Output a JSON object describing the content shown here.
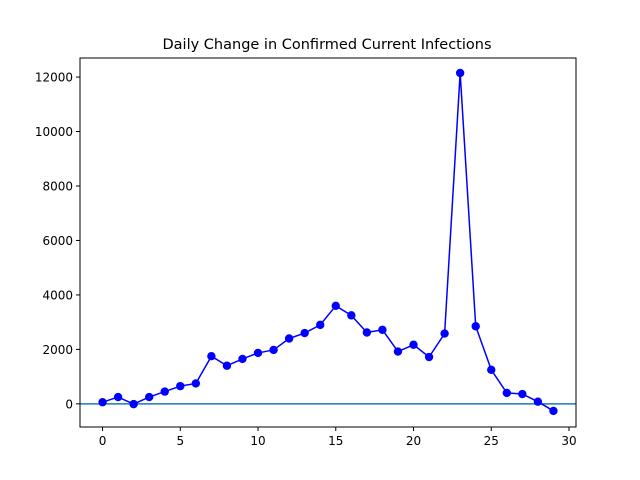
{
  "chart_data": {
    "type": "line",
    "title": "Daily Change in Confirmed Current Infections",
    "xlabel": "",
    "ylabel": "",
    "xlim": [
      -1.45,
      30.45
    ],
    "ylim": [
      -850,
      12700
    ],
    "x_ticks": [
      0,
      5,
      10,
      15,
      20,
      25,
      30
    ],
    "y_ticks": [
      0,
      2000,
      4000,
      6000,
      8000,
      10000,
      12000
    ],
    "grid": false,
    "legend": "none",
    "reference_line": {
      "y": 0,
      "color": "#1f77b4"
    },
    "series": [
      {
        "color": "#0000ff",
        "marker": "circle",
        "x": [
          0,
          1,
          2,
          3,
          4,
          5,
          6,
          7,
          8,
          9,
          10,
          11,
          12,
          13,
          14,
          15,
          16,
          17,
          18,
          19,
          20,
          21,
          22,
          23,
          24,
          25,
          26,
          27,
          28,
          29
        ],
        "values": [
          60,
          250,
          -10,
          250,
          450,
          650,
          750,
          1750,
          1400,
          1650,
          1870,
          1980,
          2400,
          2600,
          2900,
          3600,
          3250,
          2620,
          2720,
          1920,
          2170,
          1720,
          2580,
          12150,
          2850,
          1250,
          400,
          360,
          80,
          -260
        ]
      }
    ]
  }
}
